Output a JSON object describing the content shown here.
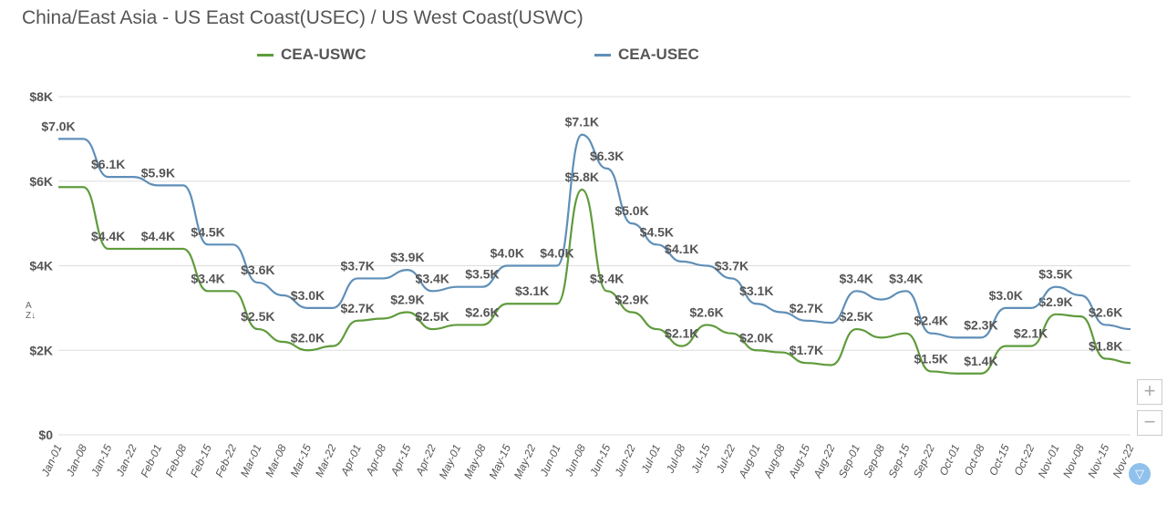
{
  "chart_data": {
    "type": "line",
    "title": "China/East Asia - US East Coast(USEC) / US West Coast(USWC)",
    "xlabel": "",
    "ylabel": "",
    "ylim": [
      0,
      8
    ],
    "yticks": [
      "$0",
      "$2K",
      "$4K",
      "$6K",
      "$8K"
    ],
    "ytick_values": [
      0,
      2,
      4,
      6,
      8
    ],
    "grid": true,
    "legend_position": "top",
    "categories": [
      "Jan-01",
      "Jan-08",
      "Jan-15",
      "Jan-22",
      "Feb-01",
      "Feb-08",
      "Feb-15",
      "Feb-22",
      "Mar-01",
      "Mar-08",
      "Mar-15",
      "Mar-22",
      "Apr-01",
      "Apr-08",
      "Apr-15",
      "Apr-22",
      "May-01",
      "May-08",
      "May-15",
      "May-22",
      "Jun-01",
      "Jun-08",
      "Jun-15",
      "Jun-22",
      "Jul-01",
      "Jul-08",
      "Jul-15",
      "Jul-22",
      "Aug-01",
      "Aug-08",
      "Aug-15",
      "Aug-22",
      "Sep-01",
      "Sep-08",
      "Sep-15",
      "Sep-22",
      "Oct-01",
      "Oct-08",
      "Oct-15",
      "Oct-22",
      "Nov-01",
      "Nov-08",
      "Nov-15",
      "Nov-22"
    ],
    "series": [
      {
        "name": "CEA-USWC",
        "color": "#5f9b3c",
        "values": [
          5.86,
          5.86,
          4.4,
          4.4,
          4.4,
          4.4,
          3.4,
          3.4,
          2.5,
          2.2,
          2.0,
          2.1,
          2.7,
          2.75,
          2.9,
          2.5,
          2.6,
          2.6,
          3.1,
          3.1,
          3.1,
          5.8,
          3.4,
          2.9,
          2.5,
          2.1,
          2.6,
          2.4,
          2.0,
          1.95,
          1.7,
          1.65,
          2.5,
          2.3,
          2.4,
          1.5,
          1.45,
          1.45,
          2.1,
          2.1,
          2.85,
          2.8,
          1.8,
          1.7
        ],
        "labeled_points": [
          2,
          4,
          6,
          8,
          10,
          12,
          14,
          15,
          17,
          19,
          21,
          22,
          23,
          25,
          26,
          28,
          30,
          32,
          35,
          37,
          39,
          40,
          42
        ]
      },
      {
        "name": "CEA-USEC",
        "color": "#5f8fb8",
        "values": [
          7.0,
          7.0,
          6.1,
          6.1,
          5.9,
          5.9,
          4.5,
          4.5,
          3.6,
          3.3,
          3.0,
          3.0,
          3.7,
          3.7,
          3.9,
          3.4,
          3.5,
          3.5,
          4.0,
          4.0,
          4.0,
          7.1,
          6.3,
          5.0,
          4.5,
          4.1,
          4.0,
          3.7,
          3.1,
          2.9,
          2.7,
          2.65,
          3.4,
          3.2,
          3.4,
          2.4,
          2.3,
          2.3,
          3.0,
          3.0,
          3.5,
          3.3,
          2.6,
          2.5
        ],
        "labeled_points": [
          0,
          2,
          4,
          6,
          8,
          10,
          12,
          14,
          15,
          17,
          18,
          20,
          21,
          22,
          23,
          24,
          25,
          27,
          28,
          30,
          32,
          34,
          35,
          37,
          38,
          40,
          42
        ]
      }
    ]
  },
  "controls": {
    "zoom_in": "+",
    "zoom_out": "−"
  }
}
